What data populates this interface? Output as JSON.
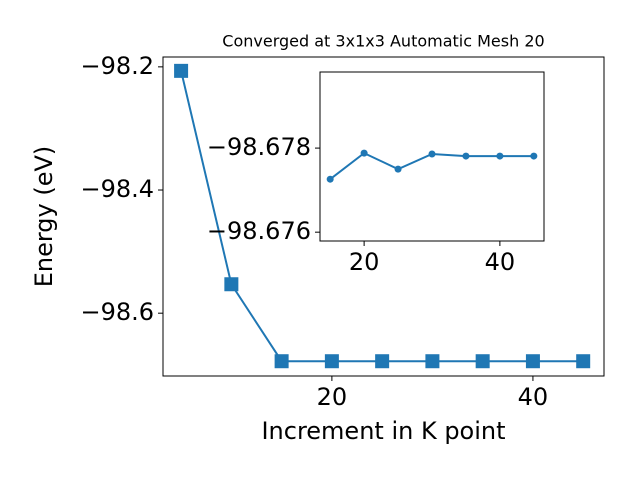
{
  "chart_data": [
    {
      "type": "line",
      "title": "Converged at 3x1x3 Automatic Mesh 20",
      "x_label": "Increment in K point",
      "y_label": "Energy (eV)",
      "x": [
        5,
        10,
        15,
        20,
        25,
        30,
        35,
        40,
        45
      ],
      "values": [
        -98.2065,
        -98.553,
        -98.678,
        -98.678,
        -98.678,
        -98.678,
        -98.678,
        -98.678,
        -98.678
      ],
      "color": "#1f77b4",
      "marker": "square",
      "xlim": [
        3.2,
        47.07
      ],
      "ylim": [
        -98.702,
        -98.184
      ],
      "xticks": [
        20,
        40
      ],
      "yticks": [
        {
          "value": -98.6,
          "label": "−98.6"
        },
        {
          "value": -98.4,
          "label": "−98.4"
        },
        {
          "value": -98.2,
          "label": "−98.2"
        }
      ]
    },
    {
      "type": "line",
      "x": [
        15,
        20,
        25,
        30,
        35,
        40,
        45
      ],
      "values": [
        -98.67726,
        -98.67788,
        -98.6775,
        -98.67786,
        -98.67781,
        -98.67781,
        -98.67781
      ],
      "color": "#1f77b4",
      "marker": "circle",
      "xlim": [
        13.5,
        46.5
      ],
      "ylim": [
        -98.67579,
        -98.67981
      ],
      "xticks": [
        20,
        40
      ],
      "yticks": [
        {
          "value": -98.676,
          "label": "−98.676"
        },
        {
          "value": -98.678,
          "label": "−98.678"
        }
      ]
    }
  ]
}
